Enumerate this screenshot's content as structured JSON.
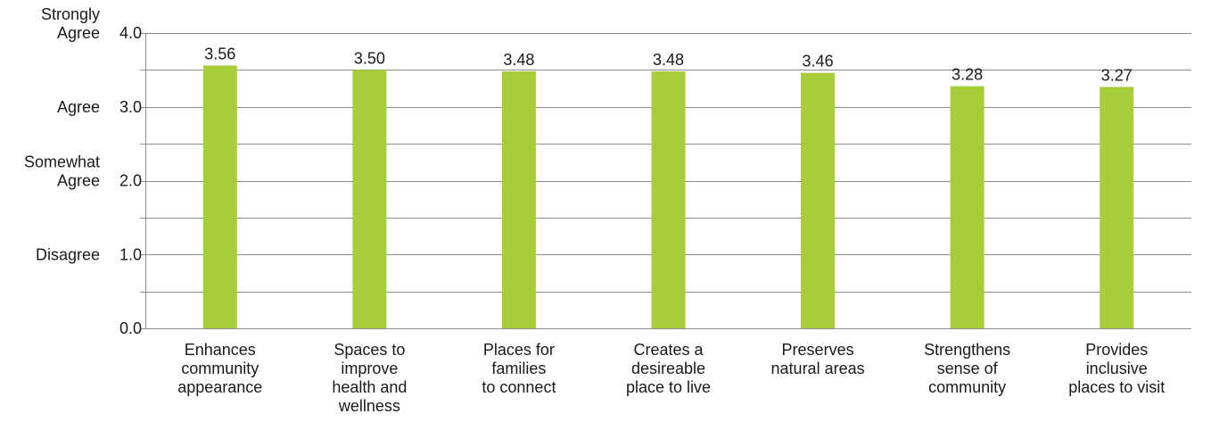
{
  "chart_data": {
    "type": "bar",
    "title": "",
    "xlabel": "",
    "ylabel": "",
    "ylim": [
      0,
      4
    ],
    "grid": true,
    "y_ticks": [
      "0.0",
      "1.0",
      "2.0",
      "3.0",
      "4.0"
    ],
    "y_tick_values": [
      0,
      1,
      2,
      3,
      4
    ],
    "scale_labels": [
      {
        "value": 1,
        "lines": [
          "Disagree"
        ]
      },
      {
        "value": 2,
        "lines": [
          "Somewhat",
          "Agree"
        ]
      },
      {
        "value": 3,
        "lines": [
          "Agree"
        ]
      },
      {
        "value": 4,
        "lines": [
          "Strongly",
          "Agree"
        ]
      }
    ],
    "categories": [
      [
        "Enhances",
        "community",
        "appearance"
      ],
      [
        "Spaces to",
        "improve",
        "health and",
        "wellness"
      ],
      [
        "Places for",
        "families",
        "to connect"
      ],
      [
        "Creates a",
        "desireable",
        "place to live"
      ],
      [
        "Preserves",
        "natural areas"
      ],
      [
        "Strengthens",
        "sense of",
        "community"
      ],
      [
        "Provides",
        "inclusive",
        "places to visit"
      ]
    ],
    "values": [
      3.56,
      3.5,
      3.48,
      3.48,
      3.46,
      3.28,
      3.27
    ],
    "value_labels": [
      "3.56",
      "3.50",
      "3.48",
      "3.48",
      "3.46",
      "3.28",
      "3.27"
    ],
    "bar_color": "#a8cd3a"
  }
}
